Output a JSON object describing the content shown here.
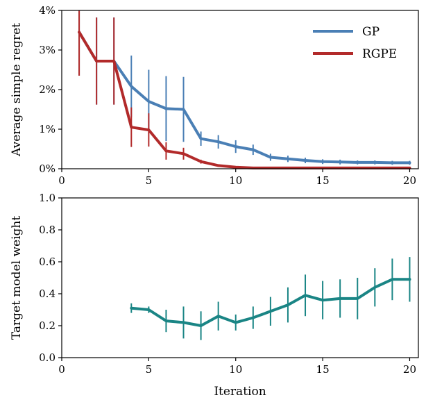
{
  "chart_data": [
    {
      "type": "line",
      "title": "",
      "xlabel": "",
      "ylabel": "Average simple regret",
      "xlim": [
        0,
        20.5
      ],
      "ylim": [
        0,
        4
      ],
      "x_ticks": [
        0,
        5,
        10,
        15,
        20
      ],
      "y_ticks": [
        0,
        1,
        2,
        3,
        4
      ],
      "y_tick_labels": [
        "0%",
        "1%",
        "2%",
        "3%",
        "4%"
      ],
      "legend_position": "top-right",
      "grid": false,
      "series": [
        {
          "name": "GP",
          "color": "#4a7fb5",
          "x": [
            1,
            2,
            3,
            4,
            5,
            6,
            7,
            8,
            9,
            10,
            11,
            12,
            13,
            14,
            15,
            16,
            17,
            18,
            19,
            20
          ],
          "y": [
            3.45,
            2.72,
            2.72,
            2.08,
            1.7,
            1.52,
            1.5,
            0.76,
            0.68,
            0.56,
            0.48,
            0.29,
            0.25,
            0.21,
            0.18,
            0.17,
            0.16,
            0.16,
            0.15,
            0.15
          ],
          "err": [
            1.1,
            1.1,
            1.1,
            0.78,
            0.8,
            0.82,
            0.82,
            0.18,
            0.17,
            0.16,
            0.13,
            0.09,
            0.08,
            0.07,
            0.06,
            0.06,
            0.05,
            0.05,
            0.05,
            0.05
          ]
        },
        {
          "name": "RGPE",
          "color": "#b22a2a",
          "x": [
            1,
            2,
            3,
            4,
            5,
            6,
            7,
            8,
            9,
            10,
            11,
            12,
            13,
            14,
            15,
            16,
            17,
            18,
            19,
            20
          ],
          "y": [
            3.45,
            2.72,
            2.72,
            1.05,
            0.98,
            0.45,
            0.38,
            0.18,
            0.08,
            0.04,
            0.02,
            0.02,
            0.02,
            0.02,
            0.02,
            0.02,
            0.02,
            0.02,
            0.02,
            0.02
          ],
          "err": [
            1.1,
            1.1,
            1.1,
            0.5,
            0.42,
            0.22,
            0.15,
            0.05,
            0.03,
            0.02,
            0.01,
            0.0,
            0.0,
            0.0,
            0.0,
            0.0,
            0.0,
            0.0,
            0.0,
            0.0
          ]
        }
      ]
    },
    {
      "type": "line",
      "title": "",
      "xlabel": "Iteration",
      "ylabel": "Target model weight",
      "xlim": [
        0,
        20.5
      ],
      "ylim": [
        0,
        1
      ],
      "x_ticks": [
        0,
        5,
        10,
        15,
        20
      ],
      "y_ticks": [
        0.0,
        0.2,
        0.4,
        0.6,
        0.8,
        1.0
      ],
      "y_tick_labels": [
        "0.0",
        "0.2",
        "0.4",
        "0.6",
        "0.8",
        "1.0"
      ],
      "grid": false,
      "series": [
        {
          "color": "#1a8585",
          "x": [
            4,
            5,
            6,
            7,
            8,
            9,
            10,
            11,
            12,
            13,
            14,
            15,
            16,
            17,
            18,
            19,
            20
          ],
          "y": [
            0.31,
            0.3,
            0.23,
            0.22,
            0.2,
            0.26,
            0.22,
            0.25,
            0.29,
            0.33,
            0.39,
            0.36,
            0.37,
            0.37,
            0.44,
            0.49,
            0.49
          ],
          "err": [
            0.03,
            0.02,
            0.07,
            0.1,
            0.09,
            0.09,
            0.05,
            0.07,
            0.09,
            0.11,
            0.13,
            0.12,
            0.12,
            0.13,
            0.12,
            0.13,
            0.14
          ]
        }
      ]
    }
  ]
}
